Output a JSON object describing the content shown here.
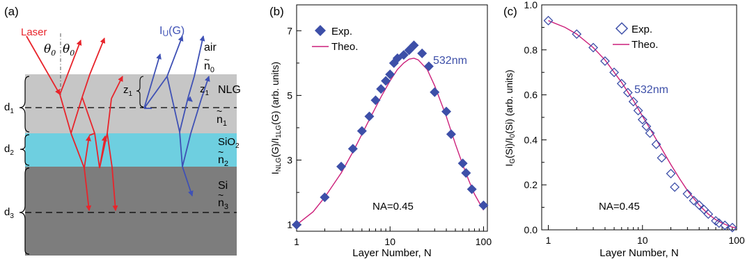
{
  "panel_a": {
    "label": "(a)",
    "laser_label": "Laser",
    "theta_left": "θ",
    "theta_right": "θ",
    "theta_sub": "0",
    "iu_main": "I",
    "iu_sub": "U",
    "iu_suffix": "(G)",
    "air_label": "air",
    "n0_tilde": "~",
    "n0_main": "n",
    "n0_sub": "0",
    "nlg_label": "NLG",
    "z1_main": "z",
    "z1_sub": "1",
    "n1_tilde": "~",
    "n1_main": "n",
    "n1_sub": "1",
    "sio2_main": "SiO",
    "sio2_sub": "2",
    "n2_tilde": "~",
    "n2_main": "n",
    "n2_sub": "2",
    "si_label": "Si",
    "n3_tilde": "~",
    "n3_main": "n",
    "n3_sub": "3",
    "d1_main": "d",
    "d1_sub": "1",
    "d2_main": "d",
    "d2_sub": "2",
    "d3_main": "d",
    "d3_sub": "3",
    "colors": {
      "air": "#ffffff",
      "nlg": "#c6c6c6",
      "sio2": "#6ecfe0",
      "si": "#7d7d7d",
      "laser": "#e8242b",
      "raman": "#3f51b5"
    }
  },
  "panel_b": {
    "label": "(b)",
    "ylabel_parts": [
      "I",
      "NLG",
      "(G)/I",
      "1LG",
      "(G) (arb. units)"
    ],
    "xlabel": "Layer Number, N",
    "legend_exp": "Exp.",
    "legend_theo": "Theo.",
    "annotation_wavelength": "532nm",
    "annotation_na": "NA=0.45",
    "x_tick_labels": [
      "1",
      "10",
      "100"
    ],
    "y_tick_labels": [
      "1",
      "3",
      "5",
      "7"
    ]
  },
  "panel_c": {
    "label": "(c)",
    "ylabel_parts": [
      "I",
      "G",
      "(Si)/I",
      "0",
      "(Si) (arb. units)"
    ],
    "xlabel": "Layer Number, N",
    "legend_exp": "Exp.",
    "legend_theo": "Theo.",
    "annotation_wavelength": "532nm",
    "annotation_na": "NA=0.45",
    "x_tick_labels": [
      "1",
      "10",
      "100"
    ],
    "y_tick_labels": [
      "0.0",
      "0.2",
      "0.4",
      "0.6",
      "0.8",
      "1.0"
    ]
  },
  "chart_data": [
    {
      "type": "scatter",
      "panel": "b",
      "xlabel": "Layer Number, N",
      "ylabel": "INLG(G)/I1LG(G) (arb. units)",
      "xscale": "log",
      "xlim": [
        1,
        110
      ],
      "ylim": [
        0.8,
        7.8
      ],
      "grid": false,
      "legend_position": "top-left",
      "marker": "filled-diamond",
      "color": "#3d4fa8",
      "curve_color": "#cc1f7a",
      "series": [
        {
          "name": "Exp.",
          "x": [
            1,
            2,
            3,
            4,
            5,
            6,
            7,
            8,
            9,
            10,
            11,
            12,
            14,
            16,
            18,
            22,
            26,
            30,
            40,
            45,
            60,
            65,
            75,
            100
          ],
          "y": [
            1.0,
            1.85,
            2.8,
            3.35,
            3.9,
            4.35,
            4.85,
            5.2,
            5.45,
            5.65,
            6.0,
            6.15,
            6.25,
            6.4,
            6.55,
            6.3,
            5.9,
            5.1,
            4.5,
            3.8,
            2.9,
            2.6,
            2.1,
            1.6
          ]
        },
        {
          "name": "Theo.",
          "x": [
            1,
            1.5,
            2,
            3,
            4,
            5,
            6,
            8,
            10,
            12,
            14,
            16,
            18,
            20,
            25,
            30,
            40,
            50,
            60,
            70,
            80,
            100
          ],
          "y": [
            1.0,
            1.4,
            1.85,
            2.6,
            3.25,
            3.8,
            4.25,
            4.95,
            5.45,
            5.8,
            6.0,
            6.12,
            6.15,
            6.1,
            5.8,
            5.3,
            4.35,
            3.5,
            2.85,
            2.35,
            1.95,
            1.45
          ]
        }
      ]
    },
    {
      "type": "scatter",
      "panel": "c",
      "xlabel": "Layer Number, N",
      "ylabel": "IG(Si)/I0(Si) (arb. units)",
      "xscale": "log",
      "xlim": [
        0.85,
        100
      ],
      "ylim": [
        0.0,
        1.0
      ],
      "grid": false,
      "legend_position": "top-right",
      "marker": "open-diamond",
      "color": "#3d4fa8",
      "curve_color": "#cc1f7a",
      "series": [
        {
          "name": "Exp.",
          "x": [
            1,
            2,
            3,
            4,
            5,
            6,
            7,
            8,
            9,
            10,
            11,
            12,
            14,
            16,
            20,
            22,
            30,
            35,
            40,
            45,
            50,
            60,
            65,
            75,
            90
          ],
          "y": [
            0.93,
            0.87,
            0.81,
            0.75,
            0.7,
            0.65,
            0.61,
            0.57,
            0.53,
            0.49,
            0.46,
            0.43,
            0.38,
            0.32,
            0.25,
            0.19,
            0.16,
            0.13,
            0.11,
            0.09,
            0.07,
            0.04,
            0.03,
            0.02,
            0.01
          ]
        },
        {
          "name": "Theo.",
          "x": [
            1,
            1.5,
            2,
            3,
            4,
            5,
            6,
            8,
            10,
            12,
            15,
            20,
            25,
            30,
            40,
            50,
            60,
            70,
            80,
            90,
            100
          ],
          "y": [
            0.93,
            0.9,
            0.87,
            0.81,
            0.755,
            0.7,
            0.655,
            0.575,
            0.505,
            0.45,
            0.38,
            0.29,
            0.225,
            0.175,
            0.11,
            0.07,
            0.045,
            0.03,
            0.02,
            0.012,
            0.008
          ]
        }
      ]
    }
  ]
}
